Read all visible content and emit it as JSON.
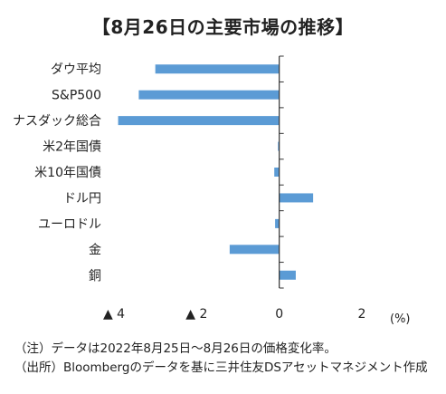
{
  "title": "【8月26日の主要市場の推移】",
  "unit_label": "(%)",
  "notes": [
    "（注）データは2022年8月25日～8月26日の価格変化率。",
    "（出所）Bloombergのデータを基に三井住友DSアセットマネジメント作成"
  ],
  "colors": {
    "bar": "#5b9bd5",
    "axis": "#333333",
    "text": "#222222"
  },
  "chart_data": {
    "type": "bar",
    "orientation": "horizontal",
    "title": "【8月26日の主要市場の推移】",
    "xlabel": "(%)",
    "ylabel": "",
    "xlim": [
      -4,
      2
    ],
    "x_ticks": [
      -4,
      -2,
      0,
      2
    ],
    "x_tick_labels": [
      "▲ 4",
      "▲ 2",
      "0",
      "2"
    ],
    "categories": [
      "ダウ平均",
      "S&P500",
      "ナスダック総合",
      "米2年国債",
      "米10年国債",
      "ドル円",
      "ユーロドル",
      "金",
      "銅"
    ],
    "values": [
      -3.0,
      -3.4,
      -3.9,
      -0.03,
      -0.12,
      0.82,
      -0.1,
      -1.2,
      0.4
    ],
    "grid": false,
    "legend": "none"
  }
}
